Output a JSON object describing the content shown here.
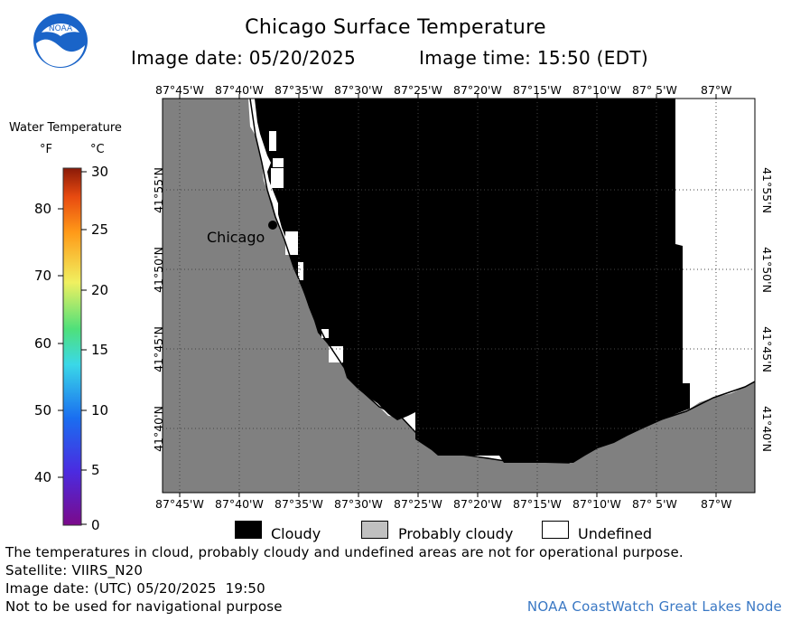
{
  "title": "Chicago Surface Temperature",
  "image_date": "Image date: 05/20/2025",
  "image_time": "Image time: 15:50 (EDT)",
  "logo_text": "NOAA",
  "scale": {
    "title": "Water Temperature",
    "unit_f": "°F",
    "unit_c": "°C",
    "f_ticks": [
      "80",
      "70",
      "60",
      "50",
      "40"
    ],
    "c_ticks": [
      "30",
      "25",
      "20",
      "15",
      "10",
      "5",
      "0"
    ]
  },
  "map": {
    "longitude_labels": [
      "87°45'W",
      "87°40'W",
      "87°35'W",
      "87°30'W",
      "87°25'W",
      "87°20'W",
      "87°15'W",
      "87°10'W",
      "87° 5'W",
      "87°W"
    ],
    "latitude_labels": [
      "41°55'N",
      "41°50'N",
      "41°45'N",
      "41°40'N"
    ],
    "city_label": "Chicago",
    "colors": {
      "land": "#808080",
      "cloudy": "#000000",
      "undefined": "#ffffff"
    }
  },
  "legend": {
    "cloudy": "Cloudy",
    "probably_cloudy": "Probably cloudy",
    "undefined": "Undefined"
  },
  "footer": {
    "disclaimer": "The temperatures in cloud, probably cloudy and undefined areas are not for operational purpose.",
    "satellite": "Satellite: VIIRS_N20",
    "utc_date": "Image date: (UTC) 05/20/2025  19:50",
    "nav_warning": "Not to be used for navigational purpose",
    "credit": "NOAA CoastWatch Great Lakes Node"
  }
}
